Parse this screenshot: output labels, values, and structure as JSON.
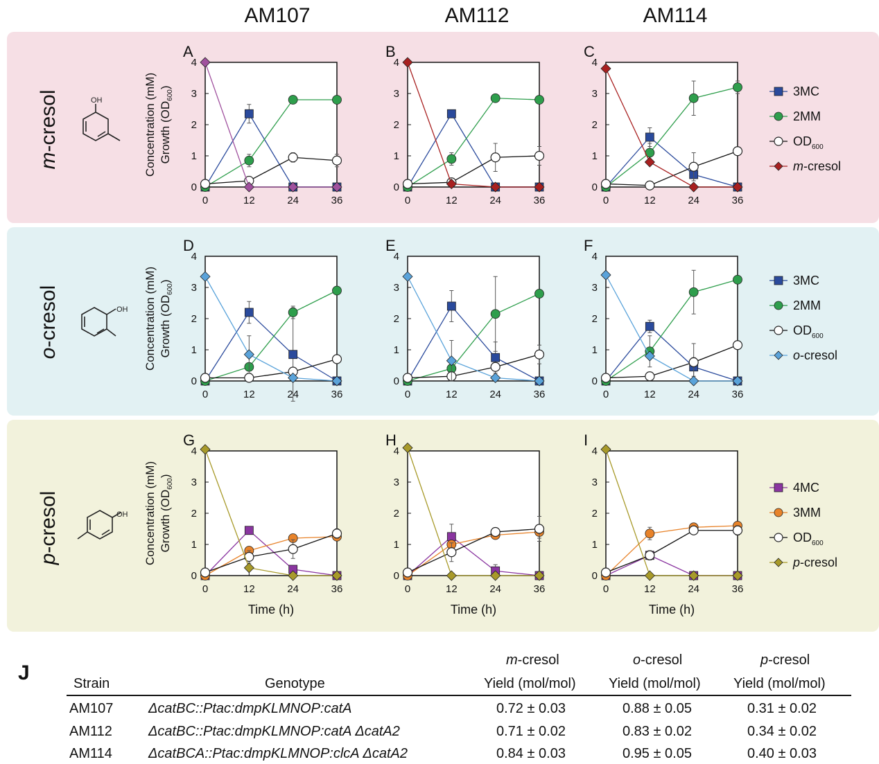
{
  "strains": [
    "AM107",
    "AM112",
    "AM114"
  ],
  "rows": [
    {
      "prefix": "m",
      "suffix": "-cresol",
      "bg": "#f6dfe5"
    },
    {
      "prefix": "o",
      "suffix": "-cresol",
      "bg": "#e2f1f3"
    },
    {
      "prefix": "p",
      "suffix": "-cresol",
      "bg": "#f2f2dc"
    }
  ],
  "y_axis_label_1": "Concentration (mM)",
  "y_axis_label_2": "Growth (OD",
  "y_axis_label_sub": "600",
  "y_axis_label_close": ")",
  "x_axis_label": "Time (h)",
  "colors": {
    "3MC": "#2a4a9c",
    "2MM": "#2e9e4c",
    "OD": "#ffffff",
    "m-cresol": "#a82020",
    "m-cresol-A": "#a0519e",
    "o-cresol": "#5aa3da",
    "4MC": "#8a35a0",
    "3MM": "#e8832a",
    "p-cresol": "#a89a2a"
  },
  "legends": [
    [
      {
        "label": "3MC",
        "italic": false
      },
      {
        "label": "2MM",
        "italic": false
      },
      {
        "label": "OD",
        "sub": "600",
        "italic": false
      },
      {
        "label": "m",
        "rest": "-cresol",
        "italic": true
      }
    ],
    [
      {
        "label": "3MC",
        "italic": false
      },
      {
        "label": "2MM",
        "italic": false
      },
      {
        "label": "OD",
        "sub": "600",
        "italic": false
      },
      {
        "label": "o",
        "rest": "-cresol",
        "italic": true
      }
    ],
    [
      {
        "label": "4MC",
        "italic": false
      },
      {
        "label": "3MM",
        "italic": false
      },
      {
        "label": "OD",
        "sub": "600",
        "italic": false
      },
      {
        "label": "p",
        "rest": "-cresol",
        "italic": true
      }
    ]
  ],
  "chart_data": [
    {
      "panel": "A",
      "type": "line",
      "x": [
        0,
        12,
        24,
        36
      ],
      "xlim": [
        0,
        36
      ],
      "ylim": [
        0,
        4
      ],
      "series": [
        {
          "name": "3MC",
          "color": "#2a4a9c",
          "marker": "square",
          "values": [
            0,
            2.35,
            0,
            0
          ],
          "err": [
            0,
            0.3,
            0,
            0
          ]
        },
        {
          "name": "2MM",
          "color": "#2e9e4c",
          "marker": "circle",
          "values": [
            0,
            0.85,
            2.8,
            2.8
          ],
          "err": [
            0,
            0.2,
            0,
            0
          ]
        },
        {
          "name": "OD600",
          "color": "#ffffff",
          "marker": "open",
          "values": [
            0.1,
            0.2,
            0.95,
            0.85
          ],
          "err": [
            0,
            0,
            0.15,
            0.2
          ]
        },
        {
          "name": "m-cresol",
          "color": "#a0519e",
          "marker": "diamond",
          "values": [
            4,
            0,
            0,
            0
          ],
          "err": [
            0,
            0,
            0,
            0
          ]
        }
      ]
    },
    {
      "panel": "B",
      "type": "line",
      "x": [
        0,
        12,
        24,
        36
      ],
      "xlim": [
        0,
        36
      ],
      "ylim": [
        0,
        4
      ],
      "series": [
        {
          "name": "3MC",
          "color": "#2a4a9c",
          "marker": "square",
          "values": [
            0,
            2.35,
            0,
            0
          ],
          "err": [
            0,
            0,
            0,
            0
          ]
        },
        {
          "name": "2MM",
          "color": "#2e9e4c",
          "marker": "circle",
          "values": [
            0,
            0.9,
            2.85,
            2.8
          ],
          "err": [
            0,
            0.2,
            0,
            0
          ]
        },
        {
          "name": "OD600",
          "color": "#ffffff",
          "marker": "open",
          "values": [
            0.1,
            0.15,
            0.95,
            1.0
          ],
          "err": [
            0,
            0,
            0.45,
            0.3
          ]
        },
        {
          "name": "m-cresol",
          "color": "#a82020",
          "marker": "diamond",
          "values": [
            4,
            0.1,
            0,
            0
          ],
          "err": [
            0,
            0,
            0,
            0
          ]
        }
      ]
    },
    {
      "panel": "C",
      "type": "line",
      "x": [
        0,
        12,
        24,
        36
      ],
      "xlim": [
        0,
        36
      ],
      "ylim": [
        0,
        4
      ],
      "series": [
        {
          "name": "3MC",
          "color": "#2a4a9c",
          "marker": "square",
          "values": [
            0,
            1.6,
            0.4,
            0
          ],
          "err": [
            0,
            0.3,
            0.2,
            0
          ]
        },
        {
          "name": "2MM",
          "color": "#2e9e4c",
          "marker": "circle",
          "values": [
            0,
            1.1,
            2.85,
            3.2
          ],
          "err": [
            0,
            0.3,
            0.55,
            0.2
          ]
        },
        {
          "name": "OD600",
          "color": "#ffffff",
          "marker": "open",
          "values": [
            0.1,
            0.05,
            0.65,
            1.15
          ],
          "err": [
            0,
            0,
            0.45,
            0
          ]
        },
        {
          "name": "m-cresol",
          "color": "#a82020",
          "marker": "diamond",
          "values": [
            3.8,
            0.8,
            0,
            0
          ],
          "err": [
            0,
            0,
            0,
            0
          ]
        }
      ]
    },
    {
      "panel": "D",
      "type": "line",
      "x": [
        0,
        12,
        24,
        36
      ],
      "xlim": [
        0,
        36
      ],
      "ylim": [
        0,
        4
      ],
      "series": [
        {
          "name": "3MC",
          "color": "#2a4a9c",
          "marker": "square",
          "values": [
            0,
            2.2,
            0.85,
            0
          ],
          "err": [
            0,
            0.35,
            1.5,
            0
          ]
        },
        {
          "name": "2MM",
          "color": "#2e9e4c",
          "marker": "circle",
          "values": [
            0,
            0.45,
            2.2,
            2.9
          ],
          "err": [
            0,
            0,
            0.2,
            0
          ]
        },
        {
          "name": "OD600",
          "color": "#ffffff",
          "marker": "open",
          "values": [
            0.1,
            0.1,
            0.3,
            0.7
          ],
          "err": [
            0,
            0,
            0,
            0
          ]
        },
        {
          "name": "o-cresol",
          "color": "#5aa3da",
          "marker": "diamond",
          "values": [
            3.35,
            0.85,
            0.1,
            0
          ],
          "err": [
            0,
            0.6,
            0,
            0
          ]
        }
      ]
    },
    {
      "panel": "E",
      "type": "line",
      "x": [
        0,
        12,
        24,
        36
      ],
      "xlim": [
        0,
        36
      ],
      "ylim": [
        0,
        4
      ],
      "series": [
        {
          "name": "3MC",
          "color": "#2a4a9c",
          "marker": "square",
          "values": [
            0,
            2.4,
            0.75,
            0
          ],
          "err": [
            0,
            0.5,
            0.5,
            0
          ]
        },
        {
          "name": "2MM",
          "color": "#2e9e4c",
          "marker": "circle",
          "values": [
            0,
            0.4,
            2.15,
            2.8
          ],
          "err": [
            0,
            0.2,
            1.2,
            0
          ]
        },
        {
          "name": "OD600",
          "color": "#ffffff",
          "marker": "open",
          "values": [
            0.1,
            0.15,
            0.45,
            0.85
          ],
          "err": [
            0,
            0,
            0,
            0.3
          ]
        },
        {
          "name": "o-cresol",
          "color": "#5aa3da",
          "marker": "diamond",
          "values": [
            3.35,
            0.65,
            0.1,
            0
          ],
          "err": [
            0,
            0.65,
            0,
            0
          ]
        }
      ]
    },
    {
      "panel": "F",
      "type": "line",
      "x": [
        0,
        12,
        24,
        36
      ],
      "xlim": [
        0,
        36
      ],
      "ylim": [
        0,
        4
      ],
      "series": [
        {
          "name": "3MC",
          "color": "#2a4a9c",
          "marker": "square",
          "values": [
            0,
            1.75,
            0.45,
            0
          ],
          "err": [
            0,
            0.2,
            0.3,
            0
          ]
        },
        {
          "name": "2MM",
          "color": "#2e9e4c",
          "marker": "circle",
          "values": [
            0,
            0.95,
            2.85,
            3.25
          ],
          "err": [
            0,
            0.5,
            0.7,
            0
          ]
        },
        {
          "name": "OD600",
          "color": "#ffffff",
          "marker": "open",
          "values": [
            0.1,
            0.15,
            0.6,
            1.15
          ],
          "err": [
            0,
            0,
            0.6,
            0
          ]
        },
        {
          "name": "o-cresol",
          "color": "#5aa3da",
          "marker": "diamond",
          "values": [
            3.4,
            0.8,
            0,
            0
          ],
          "err": [
            0,
            0,
            0,
            0
          ]
        }
      ]
    },
    {
      "panel": "G",
      "type": "line",
      "x": [
        0,
        12,
        24,
        36
      ],
      "xlim": [
        0,
        36
      ],
      "ylim": [
        0,
        4
      ],
      "series": [
        {
          "name": "4MC",
          "color": "#8a35a0",
          "marker": "square",
          "values": [
            0,
            1.45,
            0.2,
            0
          ],
          "err": [
            0,
            0,
            0,
            0
          ]
        },
        {
          "name": "3MM",
          "color": "#e8832a",
          "marker": "circle",
          "values": [
            0,
            0.8,
            1.2,
            1.25
          ],
          "err": [
            0,
            0,
            0,
            0
          ]
        },
        {
          "name": "OD600",
          "color": "#ffffff",
          "marker": "open",
          "values": [
            0.1,
            0.6,
            0.85,
            1.35
          ],
          "err": [
            0,
            0.2,
            0.3,
            0.15
          ]
        },
        {
          "name": "p-cresol",
          "color": "#a89a2a",
          "marker": "diamond",
          "values": [
            4.05,
            0.25,
            0,
            0
          ],
          "err": [
            0,
            0,
            0,
            0
          ]
        }
      ]
    },
    {
      "panel": "H",
      "type": "line",
      "x": [
        0,
        12,
        24,
        36
      ],
      "xlim": [
        0,
        36
      ],
      "ylim": [
        0,
        4
      ],
      "series": [
        {
          "name": "4MC",
          "color": "#8a35a0",
          "marker": "square",
          "values": [
            0,
            1.25,
            0.15,
            0
          ],
          "err": [
            0,
            0.4,
            0.2,
            0
          ]
        },
        {
          "name": "3MM",
          "color": "#e8832a",
          "marker": "circle",
          "values": [
            0,
            1.0,
            1.3,
            1.4
          ],
          "err": [
            0,
            0,
            0,
            0.2
          ]
        },
        {
          "name": "OD600",
          "color": "#ffffff",
          "marker": "open",
          "values": [
            0.1,
            0.75,
            1.4,
            1.5
          ],
          "err": [
            0,
            0.3,
            0,
            0.4
          ]
        },
        {
          "name": "p-cresol",
          "color": "#a89a2a",
          "marker": "diamond",
          "values": [
            4.1,
            0,
            0,
            0
          ],
          "err": [
            0,
            0,
            0,
            0
          ]
        }
      ]
    },
    {
      "panel": "I",
      "type": "line",
      "x": [
        0,
        12,
        24,
        36
      ],
      "xlim": [
        0,
        36
      ],
      "ylim": [
        0,
        4
      ],
      "series": [
        {
          "name": "4MC",
          "color": "#8a35a0",
          "marker": "square",
          "values": [
            0,
            0.65,
            0,
            0
          ],
          "err": [
            0,
            0,
            0,
            0
          ]
        },
        {
          "name": "3MM",
          "color": "#e8832a",
          "marker": "circle",
          "values": [
            0,
            1.35,
            1.55,
            1.6
          ],
          "err": [
            0,
            0.2,
            0,
            0
          ]
        },
        {
          "name": "OD600",
          "color": "#ffffff",
          "marker": "open",
          "values": [
            0.1,
            0.65,
            1.45,
            1.45
          ],
          "err": [
            0,
            0.15,
            0,
            0.15
          ]
        },
        {
          "name": "p-cresol",
          "color": "#a89a2a",
          "marker": "diamond",
          "values": [
            4.05,
            0,
            0,
            0
          ],
          "err": [
            0,
            0,
            0,
            0
          ]
        }
      ]
    }
  ],
  "table": {
    "label": "J",
    "col_strain": "Strain",
    "col_genotype": "Genotype",
    "yield_headers": [
      {
        "top_italic": "m",
        "top_rest": "-cresol",
        "bottom": "Yield (mol/mol)"
      },
      {
        "top_italic": "o",
        "top_rest": "-cresol",
        "bottom": "Yield (mol/mol)"
      },
      {
        "top_italic": "p",
        "top_rest": "-cresol",
        "bottom": "Yield (mol/mol)"
      }
    ],
    "rows": [
      {
        "strain": "AM107",
        "genotype": "ΔcatBC::Ptac:dmpKLMNOP:catA",
        "yields": [
          "0.72 ± 0.03",
          "0.88 ± 0.05",
          "0.31 ± 0.02"
        ]
      },
      {
        "strain": "AM112",
        "genotype": "ΔcatBC::Ptac:dmpKLMNOP:catA ΔcatA2",
        "yields": [
          "0.71 ± 0.02",
          "0.83 ± 0.02",
          "0.34 ± 0.02"
        ]
      },
      {
        "strain": "AM114",
        "genotype": "ΔcatBCA::Ptac:dmpKLMNOP:clcA ΔcatA2",
        "yields": [
          "0.84 ± 0.03",
          "0.95  ± 0.05",
          "0.40 ± 0.03"
        ]
      }
    ]
  }
}
